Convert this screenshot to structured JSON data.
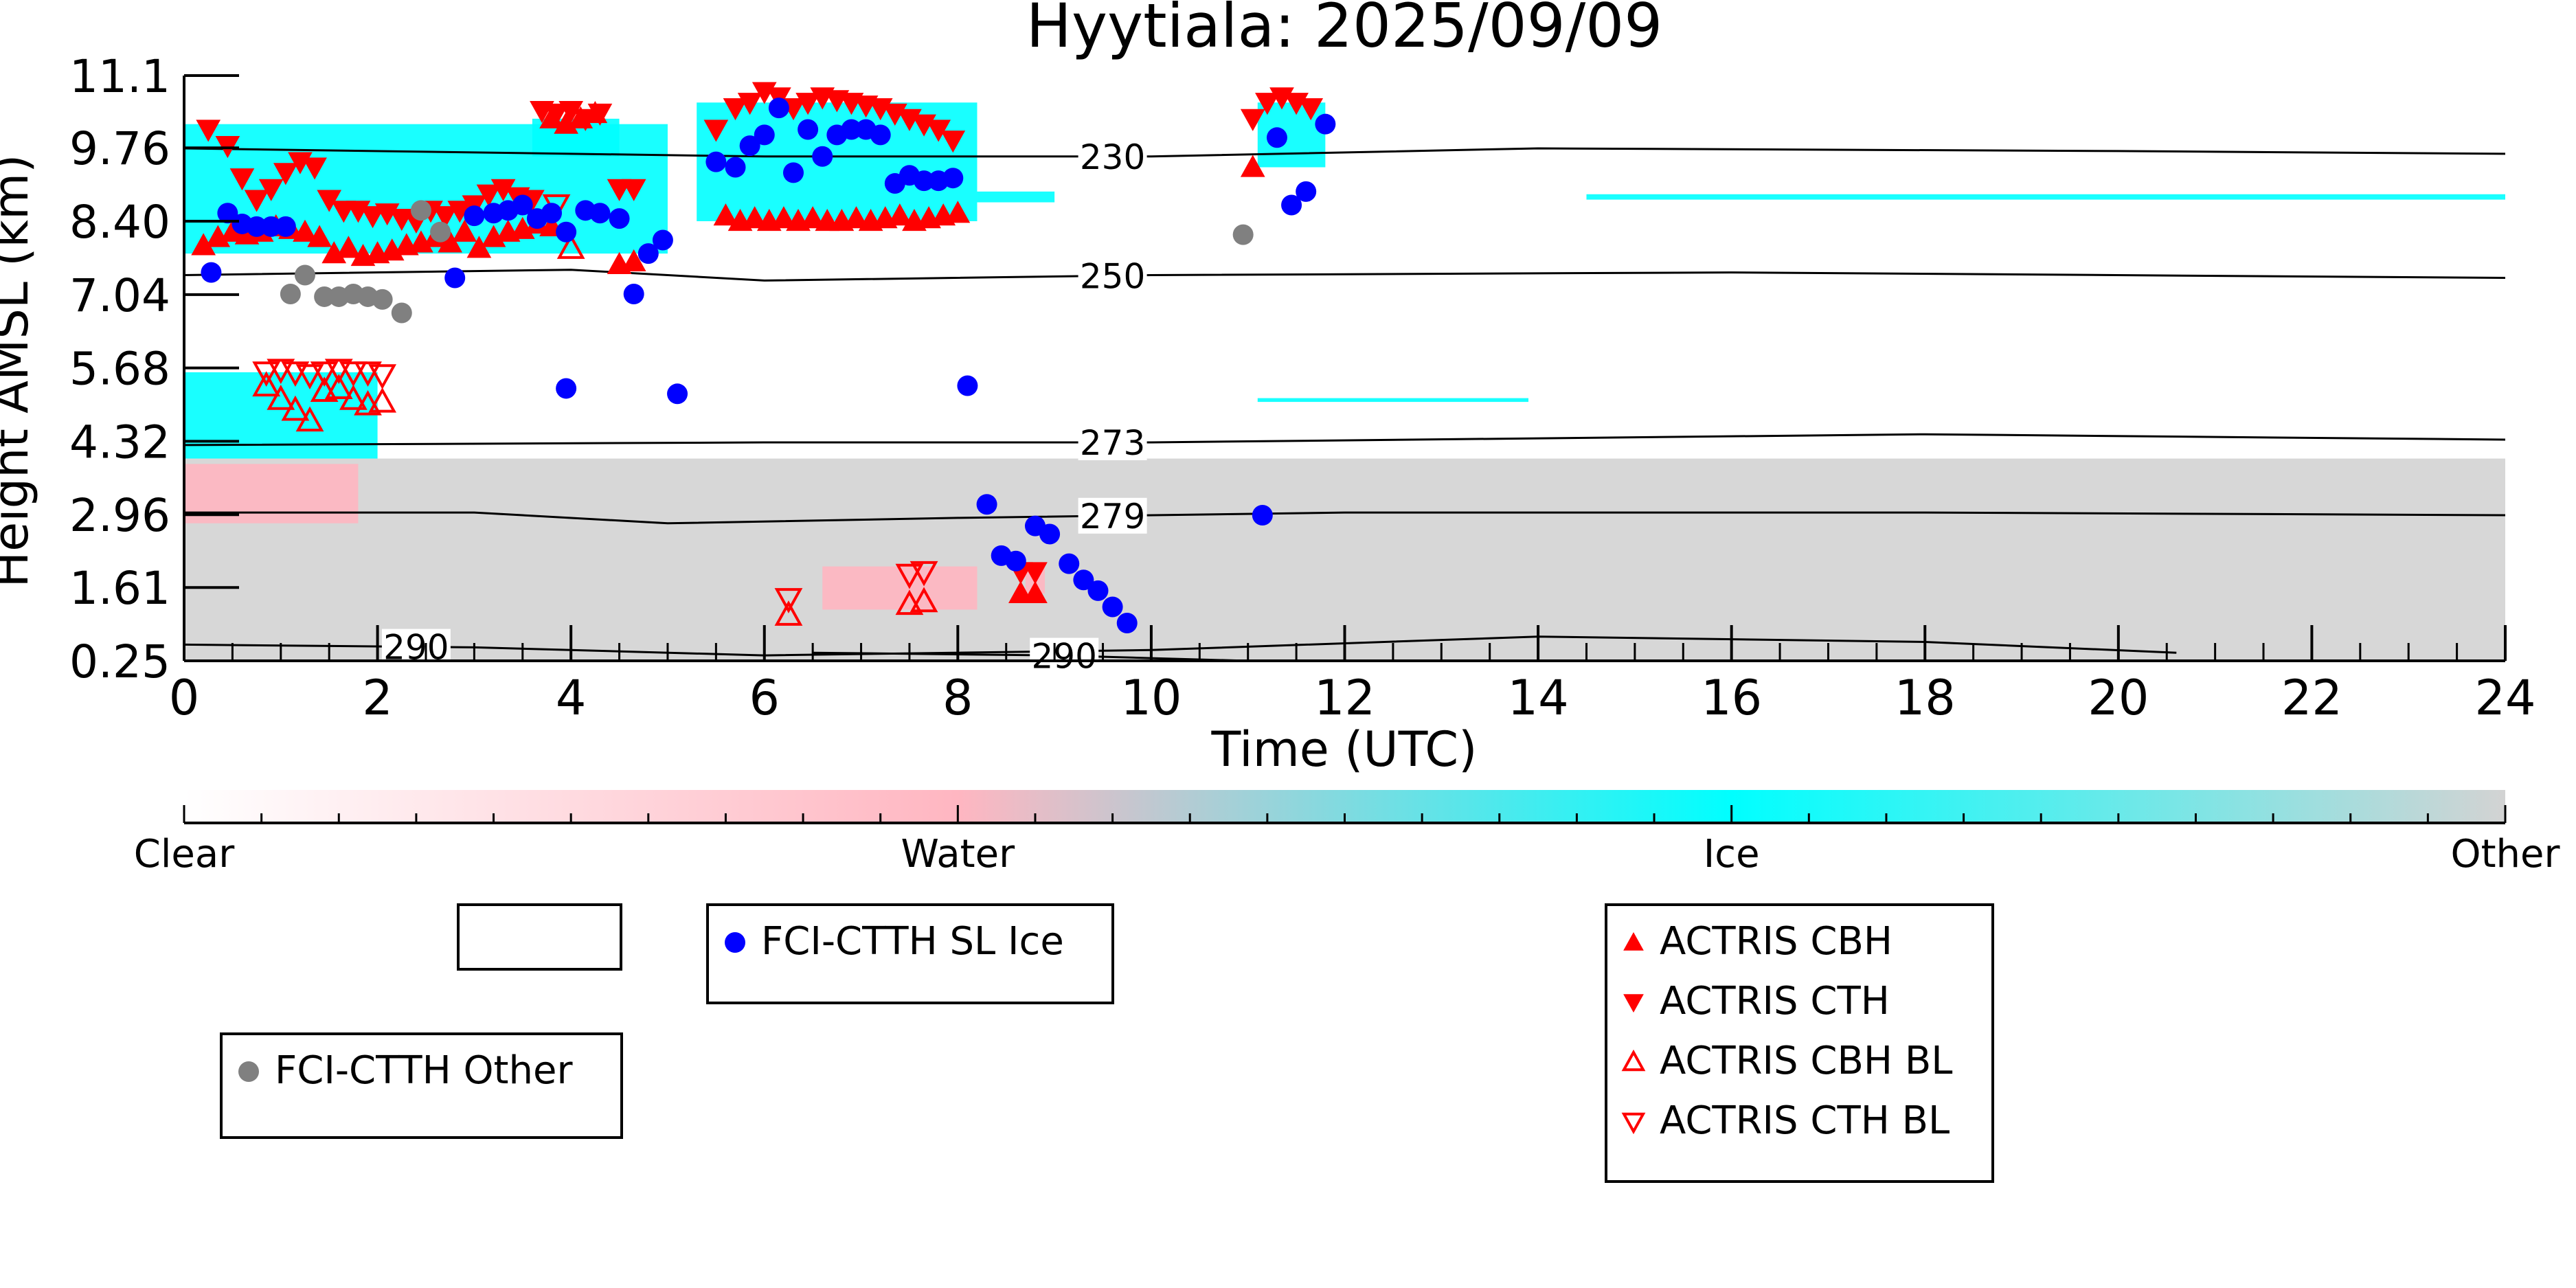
{
  "chart_data": {
    "type": "scatter",
    "title": "Hyytiala: 2025/09/09",
    "xlabel": "Time (UTC)",
    "ylabel": "Height AMSL (km)",
    "xlim": [
      0,
      24
    ],
    "ylim": [
      0.25,
      11.1
    ],
    "x_ticks": [
      "0",
      "2",
      "4",
      "6",
      "8",
      "10",
      "12",
      "14",
      "16",
      "18",
      "20",
      "22",
      "24"
    ],
    "y_ticks": [
      "0.25",
      "1.61",
      "2.96",
      "4.32",
      "5.68",
      "7.04",
      "8.40",
      "9.76",
      "11.1"
    ],
    "colorbar": {
      "labels": [
        "Clear",
        "Water",
        "Ice",
        "Other"
      ],
      "colors": [
        "#ffffff",
        "#ffb6c1",
        "#00ffff",
        "#d3d3d3"
      ]
    },
    "background_classes": {
      "other_gray": [
        {
          "x0": 0.0,
          "x1": 24.0,
          "y0": 0.25,
          "y1": 4.0
        }
      ],
      "water_pink": [
        {
          "x0": 0.0,
          "x1": 1.8,
          "y0": 2.8,
          "y1": 3.9
        },
        {
          "x0": 6.6,
          "x1": 8.2,
          "y0": 1.2,
          "y1": 2.0
        },
        {
          "x0": 8.7,
          "x1": 8.9,
          "y0": 1.5,
          "y1": 2.0
        }
      ],
      "ice_cyan": [
        {
          "x0": 0.0,
          "x1": 5.0,
          "y0": 7.8,
          "y1": 10.2
        },
        {
          "x0": 3.6,
          "x1": 4.5,
          "y0": 9.6,
          "y1": 10.3
        },
        {
          "x0": 5.3,
          "x1": 8.2,
          "y0": 8.4,
          "y1": 10.6
        },
        {
          "x0": 0.0,
          "x1": 2.0,
          "y0": 4.0,
          "y1": 5.6
        },
        {
          "x0": 11.1,
          "x1": 11.8,
          "y0": 9.4,
          "y1": 10.6
        },
        {
          "x0": 8.2,
          "x1": 9.0,
          "y0": 8.75,
          "y1": 8.95
        },
        {
          "x0": 14.5,
          "x1": 24.0,
          "y0": 8.8,
          "y1": 8.9
        },
        {
          "x0": 11.1,
          "x1": 13.9,
          "y0": 5.05,
          "y1": 5.12
        }
      ]
    },
    "isotherms": [
      {
        "label": "230",
        "label_x": 9.6,
        "points": [
          [
            0,
            9.75
          ],
          [
            6,
            9.6
          ],
          [
            10,
            9.6
          ],
          [
            14,
            9.75
          ],
          [
            20,
            9.7
          ],
          [
            24,
            9.65
          ]
        ]
      },
      {
        "label": "250",
        "label_x": 9.6,
        "points": [
          [
            0,
            7.4
          ],
          [
            4,
            7.5
          ],
          [
            6,
            7.3
          ],
          [
            10,
            7.4
          ],
          [
            16,
            7.45
          ],
          [
            24,
            7.35
          ]
        ]
      },
      {
        "label": "273",
        "label_x": 9.6,
        "points": [
          [
            0,
            4.25
          ],
          [
            6,
            4.3
          ],
          [
            10,
            4.3
          ],
          [
            18,
            4.45
          ],
          [
            24,
            4.35
          ]
        ]
      },
      {
        "label": "279",
        "label_x": 9.6,
        "points": [
          [
            0,
            3.0
          ],
          [
            3,
            3.0
          ],
          [
            5,
            2.8
          ],
          [
            8,
            2.9
          ],
          [
            12,
            3.0
          ],
          [
            18,
            3.0
          ],
          [
            24,
            2.95
          ]
        ]
      },
      {
        "label": "290",
        "label_x": 2.4,
        "points": [
          [
            0,
            0.55
          ],
          [
            3,
            0.5
          ],
          [
            6,
            0.35
          ],
          [
            10,
            0.45
          ],
          [
            14,
            0.7
          ],
          [
            18,
            0.6
          ],
          [
            20.6,
            0.4
          ]
        ]
      },
      {
        "label": "290",
        "label_x": 9.1,
        "points": [
          [
            6.5,
            0.4
          ],
          [
            9,
            0.35
          ],
          [
            10,
            0.3
          ],
          [
            11,
            0.25
          ]
        ]
      }
    ],
    "series": [
      {
        "name": "FCI-CTTH SL Ice",
        "color": "#0000ff",
        "marker": "circle",
        "x": [
          0.28,
          0.45,
          0.6,
          0.75,
          0.9,
          1.05,
          2.8,
          3.0,
          3.2,
          3.35,
          3.5,
          3.65,
          3.8,
          3.95,
          4.15,
          4.3,
          4.5,
          4.65,
          4.8,
          4.95,
          5.5,
          5.7,
          5.85,
          6.0,
          6.15,
          6.3,
          6.45,
          6.6,
          6.75,
          6.9,
          7.05,
          7.2,
          7.35,
          7.5,
          7.65,
          7.8,
          7.95,
          3.95,
          5.1,
          8.1,
          8.3,
          8.45,
          8.6,
          8.8,
          8.95,
          9.15,
          9.3,
          9.45,
          9.6,
          9.75,
          11.15,
          11.3,
          11.45,
          11.6,
          11.8
        ],
        "y": [
          7.45,
          8.55,
          8.35,
          8.3,
          8.3,
          8.3,
          7.35,
          8.5,
          8.55,
          8.6,
          8.7,
          8.45,
          8.55,
          8.2,
          8.6,
          8.55,
          8.45,
          7.05,
          7.8,
          8.05,
          9.5,
          9.4,
          9.8,
          10.0,
          10.5,
          9.3,
          10.1,
          9.6,
          10.0,
          10.1,
          10.1,
          10.0,
          9.1,
          9.25,
          9.15,
          9.15,
          9.2,
          5.3,
          5.2,
          5.35,
          3.15,
          2.2,
          2.1,
          2.75,
          2.6,
          2.05,
          1.75,
          1.55,
          1.25,
          0.95,
          2.95,
          9.95,
          8.7,
          8.95,
          10.2
        ]
      },
      {
        "name": "FCI-CTTH Other",
        "color": "#808080",
        "marker": "circle",
        "x": [
          1.1,
          1.25,
          1.45,
          1.6,
          1.75,
          1.9,
          2.05,
          2.25,
          2.45,
          2.65,
          10.95
        ],
        "y": [
          7.05,
          7.4,
          7.0,
          7.0,
          7.05,
          7.0,
          6.95,
          6.7,
          8.6,
          8.2,
          8.15
        ]
      },
      {
        "name": "ACTRIS CBH",
        "color": "#ff0000",
        "marker": "triangle-up",
        "x": [
          0.2,
          0.35,
          0.5,
          0.65,
          0.8,
          0.95,
          1.1,
          1.25,
          1.4,
          1.55,
          1.7,
          1.85,
          2.0,
          2.15,
          2.3,
          2.45,
          2.6,
          2.75,
          2.9,
          3.05,
          3.2,
          3.35,
          3.5,
          3.65,
          3.8,
          4.5,
          4.65,
          5.6,
          5.75,
          5.9,
          6.05,
          6.2,
          6.35,
          6.5,
          6.65,
          6.8,
          6.95,
          7.1,
          7.25,
          7.4,
          7.55,
          7.7,
          7.85,
          8.0,
          3.8,
          3.95,
          4.1,
          4.25,
          11.05,
          8.65,
          8.8
        ],
        "y": [
          7.95,
          8.1,
          8.2,
          8.15,
          8.2,
          8.3,
          8.25,
          8.2,
          8.1,
          7.8,
          7.9,
          7.75,
          7.8,
          7.85,
          7.95,
          8.0,
          8.1,
          8.0,
          8.2,
          7.9,
          8.1,
          8.2,
          8.25,
          8.35,
          8.3,
          7.6,
          7.65,
          8.5,
          8.4,
          8.45,
          8.4,
          8.45,
          8.4,
          8.45,
          8.4,
          8.4,
          8.45,
          8.4,
          8.45,
          8.5,
          8.4,
          8.45,
          8.5,
          8.55,
          10.3,
          10.2,
          10.3,
          10.4,
          9.4,
          1.5,
          1.5
        ]
      },
      {
        "name": "ACTRIS CTH",
        "color": "#ff0000",
        "marker": "triangle-down",
        "x": [
          0.25,
          0.45,
          0.6,
          0.75,
          0.9,
          1.05,
          1.2,
          1.35,
          1.5,
          1.65,
          1.8,
          1.95,
          2.1,
          2.25,
          2.4,
          2.55,
          2.7,
          2.85,
          3.0,
          3.15,
          3.3,
          3.45,
          3.6,
          3.7,
          3.85,
          4.0,
          4.15,
          4.3,
          4.5,
          4.65,
          5.5,
          5.7,
          5.85,
          6.0,
          6.15,
          6.3,
          6.45,
          6.6,
          6.75,
          6.9,
          7.05,
          7.2,
          7.35,
          7.5,
          7.65,
          7.8,
          7.95,
          11.05,
          11.2,
          11.35,
          11.5,
          11.65,
          8.65,
          8.8
        ],
        "y": [
          10.1,
          9.8,
          9.2,
          8.8,
          9.0,
          9.3,
          9.5,
          9.4,
          8.8,
          8.6,
          8.6,
          8.5,
          8.55,
          8.45,
          8.4,
          8.6,
          8.5,
          8.6,
          8.7,
          8.9,
          9.0,
          8.85,
          8.8,
          10.45,
          10.4,
          10.45,
          10.3,
          10.4,
          9.0,
          9.0,
          10.1,
          10.5,
          10.6,
          10.8,
          10.7,
          10.5,
          10.6,
          10.7,
          10.65,
          10.6,
          10.55,
          10.5,
          10.4,
          10.3,
          10.2,
          10.1,
          9.9,
          10.3,
          10.6,
          10.7,
          10.6,
          10.5,
          1.9,
          1.9
        ]
      },
      {
        "name": "ACTRIS CBH BL",
        "color": "#ff0000",
        "marker": "triangle-up-open",
        "x": [
          0.85,
          1.0,
          1.15,
          1.3,
          1.45,
          1.6,
          1.75,
          1.9,
          2.05,
          4.0,
          6.25,
          7.5,
          7.65
        ],
        "y": [
          5.35,
          5.1,
          4.9,
          4.7,
          5.25,
          5.3,
          5.1,
          5.0,
          5.05,
          7.9,
          1.1,
          1.3,
          1.35
        ]
      },
      {
        "name": "ACTRIS CTH BL",
        "color": "#ff0000",
        "marker": "triangle-down-open",
        "x": [
          0.85,
          1.0,
          1.15,
          1.3,
          1.45,
          1.6,
          1.75,
          1.9,
          2.05,
          3.85,
          6.25,
          7.5,
          7.65
        ],
        "y": [
          5.6,
          5.65,
          5.6,
          5.55,
          5.6,
          5.65,
          5.6,
          5.6,
          5.55,
          8.7,
          1.4,
          1.85,
          1.9
        ]
      }
    ],
    "legends": [
      {
        "entries": [
          ""
        ]
      },
      {
        "entries": [
          "FCI-CTTH SL Ice"
        ]
      },
      {
        "entries": [
          "FCI-CTTH Other"
        ]
      },
      {
        "entries": [
          "ACTRIS CBH",
          "ACTRIS CTH",
          "ACTRIS CBH BL",
          "ACTRIS CTH BL"
        ]
      }
    ]
  }
}
